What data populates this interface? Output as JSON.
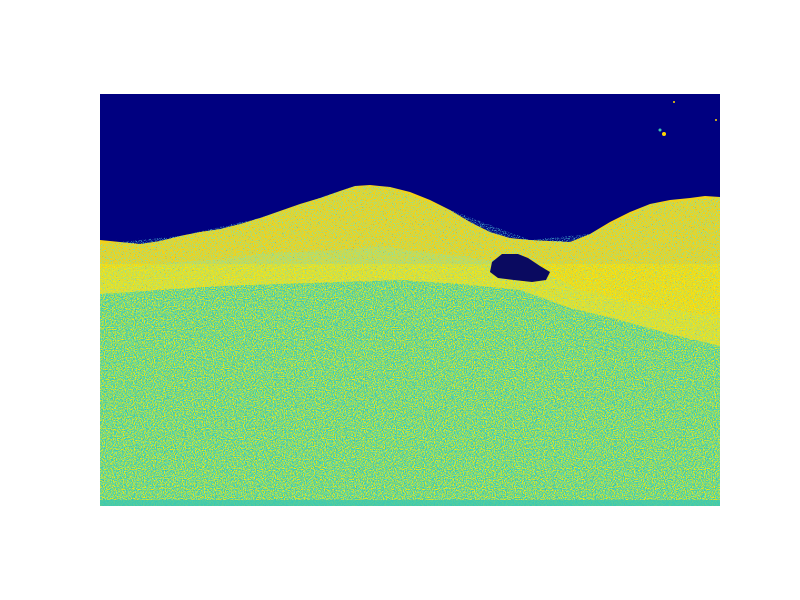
{
  "image": {
    "colormap": "jet",
    "colors": {
      "sky": "#000080",
      "crest": "#ffd700",
      "ground_primary": "#20c8c0",
      "ground_secondary": "#f0e030",
      "dark_pocket": "#0a0a60"
    }
  }
}
